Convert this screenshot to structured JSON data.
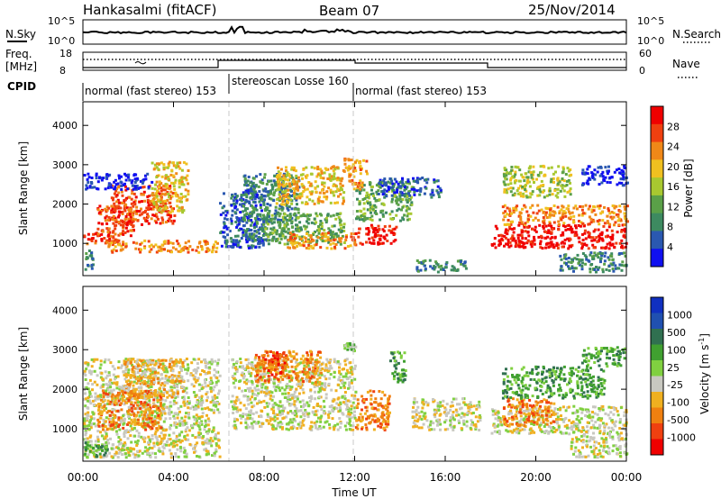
{
  "header": {
    "station": "Hankasalmi (fitACF)",
    "beam": "Beam 07",
    "date": "25/Nov/2014"
  },
  "top_panel": {
    "left_label": "N.Sky",
    "right_label": "N.Search",
    "left_ticks": [
      "10^5",
      "10^0"
    ],
    "right_ticks": [
      "10^5",
      "10^0"
    ]
  },
  "freq_panel": {
    "left_label_1": "Freq.",
    "left_label_2": "[MHz]",
    "right_label": "Nave",
    "left_ticks": [
      "18",
      "8"
    ],
    "right_ticks": [
      "60",
      "0"
    ]
  },
  "cpid_panel": {
    "label": "CPID",
    "modes": [
      {
        "text": "normal (fast stereo) 153"
      },
      {
        "text": "stereoscan Losse 160"
      },
      {
        "text": "normal (fast stereo) 153"
      }
    ]
  },
  "colors": {
    "gray": "#c4c4bc",
    "power_scale": [
      "#1010f0",
      "#2a58b0",
      "#3d8a60",
      "#5aa048",
      "#a8c830",
      "#f0c020",
      "#f08818",
      "#f04010",
      "#f00000"
    ],
    "velocity_scale": [
      "#1030c0",
      "#2050b0",
      "#307050",
      "#40a030",
      "#80d040",
      "#c8c8c0",
      "#f0b020",
      "#f08010",
      "#f04010",
      "#f00000"
    ]
  },
  "chart_data": [
    {
      "type": "heatmap",
      "name": "power",
      "xlabel": "Time UT",
      "ylabel": "Slant Range [km]",
      "x_ticks": [
        "00:00",
        "04:00",
        "08:00",
        "12:00",
        "16:00",
        "20:00",
        "00:00"
      ],
      "y_ticks": [
        "1000",
        "2000",
        "3000",
        "4000"
      ],
      "colorbar_label": "Power [dB]",
      "colorbar_ticks": [
        "4",
        "8",
        "12",
        "16",
        "20",
        "24",
        "28"
      ],
      "xlim": [
        0,
        24
      ],
      "ylim": [
        180,
        4600
      ],
      "mode_change_hours": [
        6.5,
        12.0
      ],
      "regions": [
        {
          "t0": 0.0,
          "t1": 0.4,
          "r0": 300,
          "r1": 900,
          "level": 2
        },
        {
          "t0": 0.0,
          "t1": 1.6,
          "r0": 1000,
          "r1": 1300,
          "level": 7
        },
        {
          "t0": 0.6,
          "t1": 2.2,
          "r0": 1200,
          "r1": 2000,
          "level": 7
        },
        {
          "t0": 1.2,
          "t1": 4.0,
          "r0": 1500,
          "r1": 2500,
          "level": 7
        },
        {
          "t0": 3.0,
          "t1": 4.6,
          "r0": 1800,
          "r1": 3100,
          "level": 5
        },
        {
          "t0": 1.0,
          "t1": 6.0,
          "r0": 800,
          "r1": 1100,
          "level": 6
        },
        {
          "t0": 0.0,
          "t1": 3.0,
          "r0": 2400,
          "r1": 2800,
          "level": 0
        },
        {
          "t0": 6.0,
          "t1": 8.0,
          "r0": 900,
          "r1": 2400,
          "level": 1
        },
        {
          "t0": 7.0,
          "t1": 9.5,
          "r0": 1100,
          "r1": 2800,
          "level": 2
        },
        {
          "t0": 8.0,
          "t1": 11.5,
          "r0": 1000,
          "r1": 1800,
          "level": 3
        },
        {
          "t0": 8.5,
          "t1": 11.5,
          "r0": 2000,
          "r1": 3000,
          "level": 5
        },
        {
          "t0": 9.0,
          "t1": 12.0,
          "r0": 900,
          "r1": 1300,
          "level": 6
        },
        {
          "t0": 12.0,
          "t1": 13.8,
          "r0": 1000,
          "r1": 1500,
          "level": 8
        },
        {
          "t0": 12.0,
          "t1": 14.5,
          "r0": 1600,
          "r1": 2600,
          "level": 3
        },
        {
          "t0": 13.0,
          "t1": 15.8,
          "r0": 2200,
          "r1": 2700,
          "level": 1
        },
        {
          "t0": 11.5,
          "t1": 12.5,
          "r0": 2400,
          "r1": 3200,
          "level": 6
        },
        {
          "t0": 18.0,
          "t1": 24.0,
          "r0": 900,
          "r1": 1500,
          "level": 8
        },
        {
          "t0": 18.5,
          "t1": 24.0,
          "r0": 1500,
          "r1": 2000,
          "level": 6
        },
        {
          "t0": 18.5,
          "t1": 21.5,
          "r0": 2200,
          "r1": 3000,
          "level": 4
        },
        {
          "t0": 21.0,
          "t1": 24.0,
          "r0": 300,
          "r1": 800,
          "level": 2
        },
        {
          "t0": 22.0,
          "t1": 24.0,
          "r0": 2500,
          "r1": 3000,
          "level": 0
        },
        {
          "t0": 14.5,
          "t1": 17.0,
          "r0": 300,
          "r1": 600,
          "level": 2
        }
      ]
    },
    {
      "type": "heatmap",
      "name": "velocity",
      "xlabel": "Time UT",
      "ylabel": "Slant Range [km]",
      "x_ticks": [
        "00:00",
        "04:00",
        "08:00",
        "12:00",
        "16:00",
        "20:00",
        "00:00"
      ],
      "y_ticks": [
        "1000",
        "2000",
        "3000",
        "4000"
      ],
      "colorbar_label": "Velocity [m s^-1]",
      "colorbar_ticks": [
        "1000",
        "500",
        "100",
        "25",
        "-25",
        "-100",
        "-500",
        "-1000"
      ],
      "xlim": [
        0,
        24
      ],
      "ylim": [
        180,
        4600
      ],
      "mode_change_hours": [
        6.5,
        12.0
      ],
      "regions": [
        {
          "t0": 0.0,
          "t1": 6.0,
          "r0": 300,
          "r1": 2800,
          "level": 5
        },
        {
          "t0": 0.6,
          "t1": 3.4,
          "r0": 1000,
          "r1": 2000,
          "level": 7
        },
        {
          "t0": 1.8,
          "t1": 4.4,
          "r0": 1800,
          "r1": 2800,
          "level": 6
        },
        {
          "t0": 0.0,
          "t1": 1.2,
          "r0": 300,
          "r1": 700,
          "level": 3
        },
        {
          "t0": 6.5,
          "t1": 12.0,
          "r0": 1000,
          "r1": 2800,
          "level": 5
        },
        {
          "t0": 7.5,
          "t1": 10.5,
          "r0": 2200,
          "r1": 3000,
          "level": 7
        },
        {
          "t0": 8.0,
          "t1": 9.0,
          "r0": 2400,
          "r1": 3000,
          "level": 8
        },
        {
          "t0": 12.0,
          "t1": 13.5,
          "r0": 1000,
          "r1": 2000,
          "level": 7
        },
        {
          "t0": 11.5,
          "t1": 12.0,
          "r0": 3000,
          "r1": 3200,
          "level": 4
        },
        {
          "t0": 13.5,
          "t1": 14.2,
          "r0": 2200,
          "r1": 3000,
          "level": 3
        },
        {
          "t0": 14.5,
          "t1": 17.5,
          "r0": 1000,
          "r1": 1800,
          "level": 5
        },
        {
          "t0": 18.0,
          "t1": 24.0,
          "r0": 900,
          "r1": 1600,
          "level": 5
        },
        {
          "t0": 18.5,
          "t1": 20.8,
          "r0": 1100,
          "r1": 1800,
          "level": 7
        },
        {
          "t0": 18.5,
          "t1": 23.0,
          "r0": 1800,
          "r1": 2600,
          "level": 3
        },
        {
          "t0": 21.5,
          "t1": 24.0,
          "r0": 300,
          "r1": 900,
          "level": 5
        },
        {
          "t0": 22.0,
          "t1": 24.0,
          "r0": 2600,
          "r1": 3100,
          "level": 3
        }
      ]
    }
  ]
}
